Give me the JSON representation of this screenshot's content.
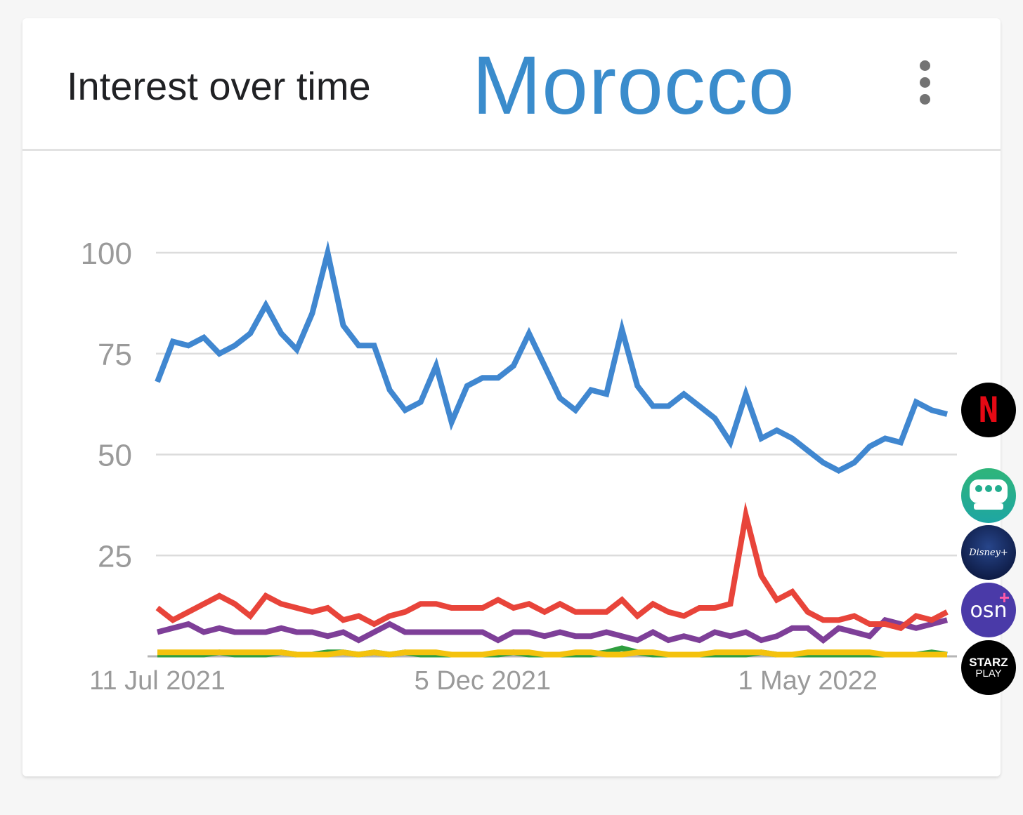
{
  "card": {
    "title": "Interest over time",
    "country": "Morocco"
  },
  "logos": [
    {
      "icon": "netflix-logo-icon",
      "text": "N"
    },
    {
      "icon": "shahid-logo-icon",
      "text": ""
    },
    {
      "icon": "disney-plus-logo-icon",
      "text": "Disney+"
    },
    {
      "icon": "osn-plus-logo-icon",
      "text": "osn",
      "plus": "+"
    },
    {
      "icon": "starz-play-logo-icon",
      "text": "STARZ",
      "sub": "PLAY"
    }
  ],
  "colors": {
    "blue": "#4087d0",
    "red": "#e8443a",
    "purple": "#7e3f98",
    "yellow": "#f4c20d",
    "green": "#2e9e3e",
    "grid": "#dcdcdc",
    "tick": "#9a9a9a"
  },
  "chart_data": {
    "type": "line",
    "title": "Interest over time",
    "xlabel": "",
    "ylabel": "",
    "ylim": [
      0,
      100
    ],
    "yticks": [
      25,
      50,
      75,
      100
    ],
    "grid": true,
    "x_tick_labels": [
      {
        "label": "11 Jul 2021",
        "index": 0
      },
      {
        "label": "5 Dec 2021",
        "index": 21
      },
      {
        "label": "1 May 2022",
        "index": 42
      }
    ],
    "series": [
      {
        "color": "#4087d0",
        "values": [
          68,
          78,
          77,
          79,
          75,
          77,
          80,
          87,
          80,
          76,
          85,
          100,
          82,
          77,
          77,
          66,
          61,
          63,
          72,
          58,
          67,
          69,
          69,
          72,
          80,
          72,
          64,
          61,
          66,
          65,
          81,
          67,
          62,
          62,
          65,
          62,
          59,
          53,
          65,
          54,
          56,
          54,
          51,
          48,
          46,
          48,
          52,
          54,
          53,
          63,
          61,
          60
        ]
      },
      {
        "color": "#e8443a",
        "values": [
          12,
          9,
          11,
          13,
          15,
          13,
          10,
          15,
          13,
          12,
          11,
          12,
          9,
          10,
          8,
          10,
          11,
          13,
          13,
          12,
          12,
          12,
          14,
          12,
          13,
          11,
          13,
          11,
          11,
          11,
          14,
          10,
          13,
          11,
          10,
          12,
          12,
          13,
          35,
          20,
          14,
          16,
          11,
          9,
          9,
          10,
          8,
          8,
          7,
          10,
          9,
          11
        ]
      },
      {
        "color": "#7e3f98",
        "values": [
          6,
          7,
          8,
          6,
          7,
          6,
          6,
          6,
          7,
          6,
          6,
          5,
          6,
          4,
          6,
          8,
          6,
          6,
          6,
          6,
          6,
          6,
          4,
          6,
          6,
          5,
          6,
          5,
          5,
          6,
          5,
          4,
          6,
          4,
          5,
          4,
          6,
          5,
          6,
          4,
          5,
          7,
          7,
          4,
          7,
          6,
          5,
          9,
          8,
          7,
          8,
          9
        ]
      },
      {
        "color": "#f4c20d",
        "values": [
          1,
          1,
          1,
          1,
          1,
          1,
          1,
          1,
          1,
          0,
          0,
          0,
          1,
          0,
          1,
          0,
          1,
          1,
          1,
          0,
          0,
          0,
          1,
          1,
          1,
          0,
          0,
          1,
          1,
          0,
          0,
          1,
          1,
          0,
          0,
          0,
          1,
          1,
          1,
          1,
          0,
          0,
          1,
          1,
          1,
          1,
          1,
          0,
          0,
          0,
          0,
          0
        ]
      },
      {
        "color": "#2e9e3e",
        "values": [
          0,
          0,
          0,
          0,
          1,
          0,
          0,
          0,
          1,
          0,
          0,
          1,
          1,
          0,
          1,
          0,
          1,
          0,
          0,
          0,
          0,
          0,
          0,
          1,
          0,
          0,
          0,
          0,
          0,
          1,
          2,
          1,
          0,
          0,
          0,
          0,
          0,
          0,
          0,
          1,
          0,
          0,
          0,
          0,
          0,
          0,
          0,
          0,
          0,
          0,
          1,
          0
        ]
      }
    ]
  }
}
